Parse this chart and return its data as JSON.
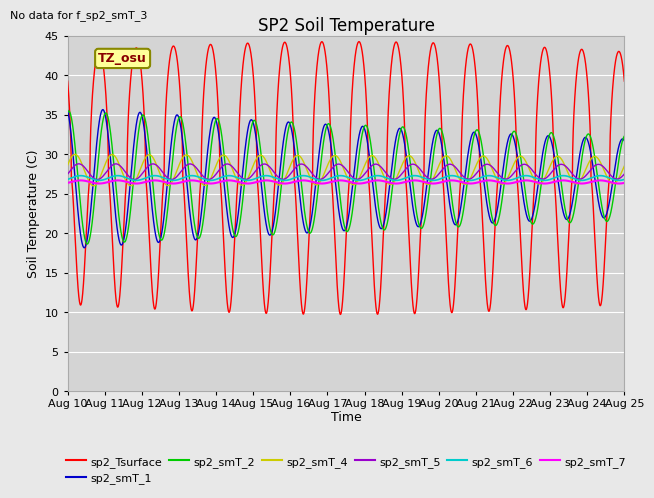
{
  "title": "SP2 Soil Temperature",
  "no_data_text": "No data for f_sp2_smT_3",
  "tz_label": "TZ_osu",
  "xlabel": "Time",
  "ylabel": "Soil Temperature (C)",
  "ylim": [
    0,
    45
  ],
  "bg_color": "#e8e8e8",
  "plot_bg_color": "#d4d4d4",
  "series": [
    {
      "label": "sp2_Tsurface",
      "color": "#ff0000",
      "mean": 27.0,
      "amplitude": 16.0,
      "phase_shift": 0.0,
      "damping": 0.0,
      "sharp_peak": true,
      "lw": 1.0
    },
    {
      "label": "sp2_smT_1",
      "color": "#0000cc",
      "mean": 27.0,
      "amplitude": 9.0,
      "phase_shift": 0.1,
      "damping": 0.04,
      "sharp_peak": false,
      "lw": 1.0
    },
    {
      "label": "sp2_smT_2",
      "color": "#00cc00",
      "mean": 27.0,
      "amplitude": 8.5,
      "phase_shift": 0.18,
      "damping": 0.03,
      "sharp_peak": false,
      "lw": 1.0
    },
    {
      "label": "sp2_smT_4",
      "color": "#cccc00",
      "mean": 28.0,
      "amplitude": 2.0,
      "phase_shift": 0.35,
      "damping": 0.01,
      "sharp_peak": false,
      "lw": 1.0
    },
    {
      "label": "sp2_smT_5",
      "color": "#9900cc",
      "mean": 27.8,
      "amplitude": 1.0,
      "phase_shift": 0.45,
      "damping": 0.005,
      "sharp_peak": false,
      "lw": 1.0
    },
    {
      "label": "sp2_smT_6",
      "color": "#00cccc",
      "mean": 27.0,
      "amplitude": 0.3,
      "phase_shift": 0.5,
      "damping": 0.0,
      "sharp_peak": false,
      "lw": 1.2
    },
    {
      "label": "sp2_smT_7",
      "color": "#ff00ff",
      "mean": 26.5,
      "amplitude": 0.2,
      "phase_shift": 0.5,
      "damping": 0.0,
      "sharp_peak": false,
      "lw": 1.5
    }
  ],
  "tick_labels": [
    "Aug 10",
    "Aug 11",
    "Aug 12",
    "Aug 13",
    "Aug 14",
    "Aug 15",
    "Aug 16",
    "Aug 17",
    "Aug 18",
    "Aug 19",
    "Aug 20",
    "Aug 21",
    "Aug 22",
    "Aug 23",
    "Aug 24",
    "Aug 25"
  ]
}
